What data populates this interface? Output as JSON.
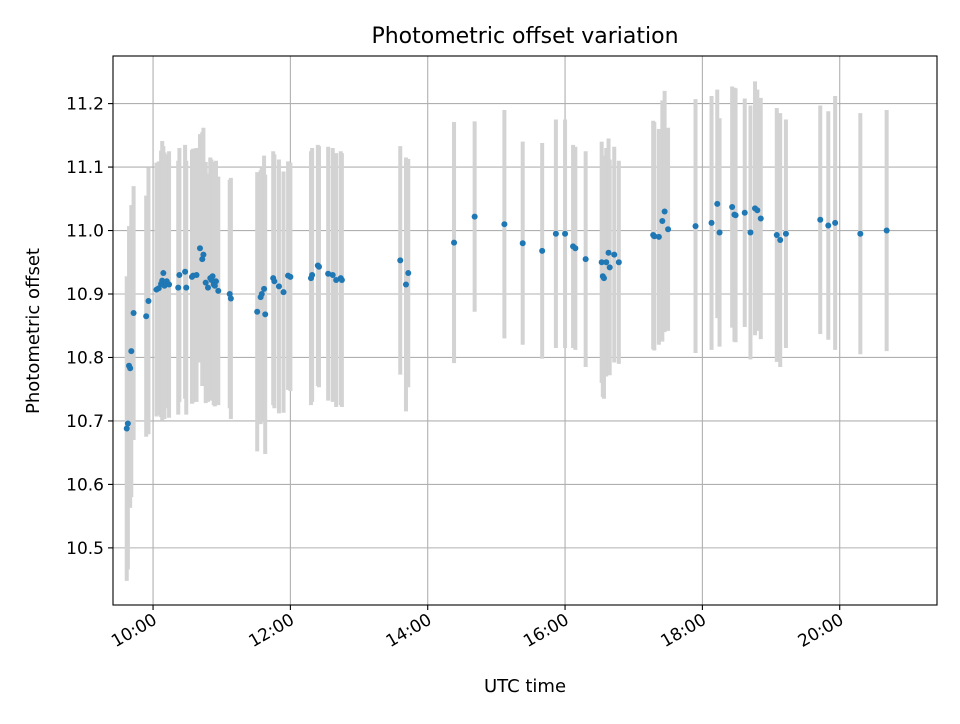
{
  "chart_data": {
    "type": "scatter",
    "title": "Photometric offset variation",
    "xlabel": "UTC time",
    "ylabel": "Photometric offset",
    "xlim": [
      "09:25",
      "21:25"
    ],
    "ylim": [
      10.41,
      11.275
    ],
    "xticks": [
      "10:00",
      "12:00",
      "14:00",
      "16:00",
      "18:00",
      "20:00"
    ],
    "yticks": [
      "10.5",
      "10.6",
      "10.7",
      "10.8",
      "10.9",
      "11.0",
      "11.1",
      "11.2"
    ],
    "grid": true,
    "colors": {
      "point": "#1f77b4",
      "errorbar": "#d3d3d3",
      "grid": "#b0b0b0"
    },
    "series": [
      {
        "x": [
          "09:37",
          "09:38",
          "09:39",
          "09:40",
          "09:41",
          "09:43",
          "09:54",
          "09:56",
          "10:03",
          "10:05",
          "10:07",
          "10:08",
          "10:09",
          "10:10",
          "10:12",
          "10:14",
          "10:22",
          "10:23",
          "10:28",
          "10:29",
          "10:34",
          "10:35",
          "10:38",
          "10:41",
          "10:43",
          "10:44",
          "10:46",
          "10:48",
          "10:50",
          "10:51",
          "10:52",
          "10:53",
          "10:54",
          "10:55",
          "10:57",
          "11:07",
          "11:08",
          "11:31",
          "11:34",
          "11:35",
          "11:37",
          "11:38",
          "11:45",
          "11:46",
          "11:50",
          "11:54",
          "11:58",
          "12:00",
          "12:18",
          "12:19",
          "12:24",
          "12:25",
          "12:33",
          "12:37",
          "12:40",
          "12:44",
          "12:45",
          "13:36",
          "13:41",
          "13:43",
          "14:23",
          "14:41",
          "15:07",
          "15:23",
          "15:40",
          "15:52",
          "16:00",
          "16:07",
          "16:09",
          "16:18",
          "16:32",
          "16:33",
          "16:34",
          "16:36",
          "16:38",
          "16:39",
          "16:43",
          "16:47",
          "17:17",
          "17:18",
          "17:22",
          "17:25",
          "17:27",
          "17:30",
          "17:54",
          "18:08",
          "18:13",
          "18:15",
          "18:26",
          "18:28",
          "18:29",
          "18:37",
          "18:42",
          "18:46",
          "18:48",
          "18:51",
          "19:05",
          "19:08",
          "19:13",
          "19:43",
          "19:50",
          "19:56",
          "20:18",
          "20:41"
        ],
        "y": [
          10.688,
          10.696,
          10.787,
          10.783,
          10.81,
          10.87,
          10.865,
          10.889,
          10.907,
          10.909,
          10.916,
          10.921,
          10.933,
          10.913,
          10.92,
          10.915,
          10.91,
          10.93,
          10.935,
          10.91,
          10.927,
          10.929,
          10.93,
          10.972,
          10.955,
          10.962,
          10.918,
          10.91,
          10.925,
          10.922,
          10.928,
          10.915,
          10.913,
          10.92,
          10.905,
          10.9,
          10.893,
          10.872,
          10.895,
          10.9,
          10.908,
          10.868,
          10.925,
          10.92,
          10.912,
          10.903,
          10.929,
          10.927,
          10.925,
          10.93,
          10.945,
          10.943,
          10.932,
          10.93,
          10.922,
          10.925,
          10.922,
          10.953,
          10.915,
          10.933,
          10.981,
          11.022,
          11.01,
          10.98,
          10.968,
          10.995,
          10.995,
          10.975,
          10.972,
          10.955,
          10.95,
          10.928,
          10.925,
          10.95,
          10.965,
          10.942,
          10.962,
          10.95,
          10.993,
          10.991,
          10.99,
          11.015,
          11.03,
          11.002,
          11.007,
          11.012,
          11.042,
          10.997,
          11.037,
          11.025,
          11.024,
          11.028,
          10.997,
          11.035,
          11.032,
          11.019,
          10.993,
          10.985,
          10.995,
          11.017,
          11.008,
          11.012,
          10.995,
          11.0
        ],
        "err": [
          0.24,
          0.23,
          0.22,
          0.22,
          0.23,
          0.2,
          0.19,
          0.21,
          0.2,
          0.2,
          0.21,
          0.22,
          0.2,
          0.21,
          0.2,
          0.21,
          0.2,
          0.2,
          0.2,
          0.2,
          0.2,
          0.2,
          0.2,
          0.18,
          0.2,
          0.2,
          0.19,
          0.18,
          0.19,
          0.19,
          0.18,
          0.19,
          0.19,
          0.19,
          0.18,
          0.18,
          0.19,
          0.22,
          0.2,
          0.2,
          0.21,
          0.22,
          0.2,
          0.2,
          0.2,
          0.19,
          0.18,
          0.18,
          0.2,
          0.2,
          0.19,
          0.19,
          0.2,
          0.2,
          0.2,
          0.2,
          0.2,
          0.18,
          0.2,
          0.18,
          0.19,
          0.15,
          0.18,
          0.16,
          0.17,
          0.18,
          0.18,
          0.16,
          0.16,
          0.17,
          0.19,
          0.19,
          0.19,
          0.18,
          0.18,
          0.17,
          0.17,
          0.16,
          0.18,
          0.18,
          0.17,
          0.19,
          0.19,
          0.16,
          0.2,
          0.2,
          0.18,
          0.18,
          0.19,
          0.2,
          0.2,
          0.18,
          0.2,
          0.2,
          0.19,
          0.19,
          0.2,
          0.2,
          0.18,
          0.18,
          0.18,
          0.2,
          0.19,
          0.19
        ]
      }
    ]
  }
}
